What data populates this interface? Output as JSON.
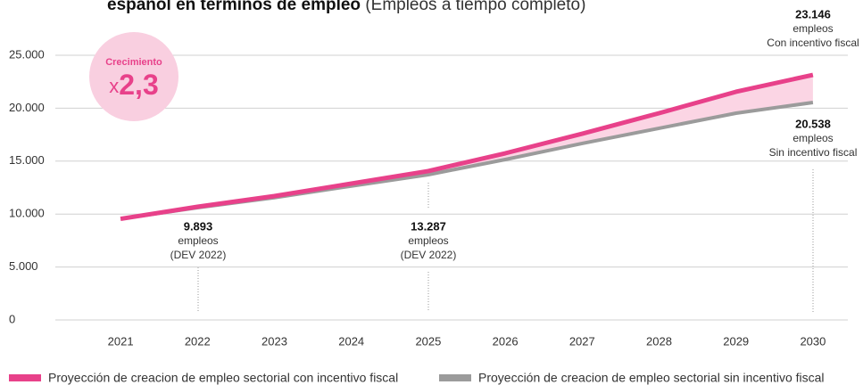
{
  "chart_data": {
    "type": "line",
    "title": "español en términos de empleo",
    "subtitle": "(Empleos a tiempo completo)",
    "categories": [
      "2021",
      "2022",
      "2023",
      "2024",
      "2025",
      "2026",
      "2027",
      "2028",
      "2029",
      "2030"
    ],
    "series": [
      {
        "name": "Proyección de creacion de empleo sectorial con incentivo fiscal",
        "color": "#e8418a",
        "values": [
          9550,
          10690,
          11700,
          12880,
          14060,
          15740,
          17590,
          19530,
          21550,
          23146
        ]
      },
      {
        "name": "Proyección de creacion de empleo sectorial sin incentivo fiscal",
        "color": "#9b9b9b",
        "values": [
          9550,
          10600,
          11550,
          12650,
          13720,
          15150,
          16670,
          18100,
          19530,
          20538
        ]
      }
    ],
    "fill_between_color": "#fbd5e4",
    "ylim": [
      0,
      25000
    ],
    "yticks": [
      0,
      {
        "value": 5000,
        "label": "5.000"
      },
      {
        "value": 10000,
        "label": "10.000"
      },
      {
        "value": 15000,
        "label": "15.000"
      },
      {
        "value": 20000,
        "label": "20.000"
      },
      {
        "value": 25000,
        "label": "25.000"
      }
    ],
    "grid": true,
    "badge": {
      "label": "Crecimiento",
      "prefix": "x",
      "value": "2,3"
    },
    "annotations": [
      {
        "value": "23.146",
        "lines": [
          "empleos",
          "Con incentivo fiscal"
        ]
      },
      {
        "value": "20.538",
        "lines": [
          "empleos",
          "Sin incentivo fiscal"
        ]
      },
      {
        "value": "9.893",
        "lines": [
          "empleos",
          "(DEV 2022)"
        ]
      },
      {
        "value": "13.287",
        "lines": [
          "empleos",
          "(DEV 2022)"
        ]
      }
    ],
    "legend": "bottom"
  }
}
